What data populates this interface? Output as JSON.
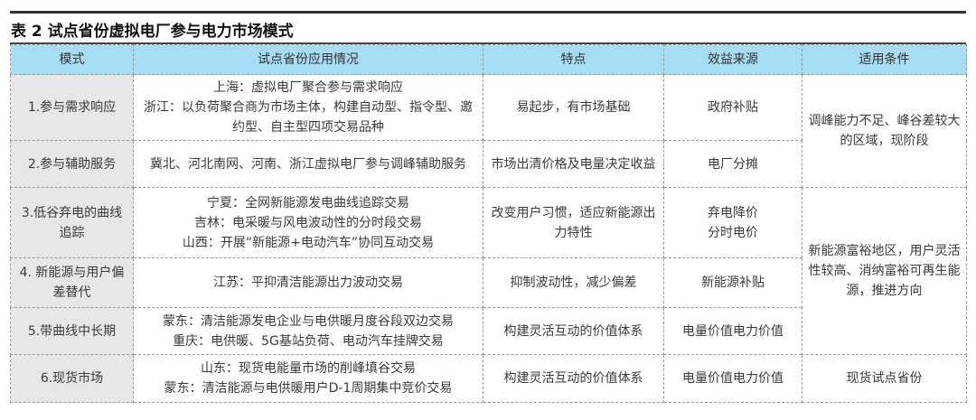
{
  "title": "表 2 试点省份虚拟电厂参与电力市场模式",
  "headers": [
    "模式",
    "试点省份应用情况",
    "特点",
    "效益来源",
    "适用条件"
  ],
  "rows": [
    {
      "mode": "1.参与需求响应",
      "cases": [
        "上海：虚拟电厂聚合参与需求响应",
        "浙江：以负荷聚合商为市场主体，构建自动型、指令型、邀约型、自主型四项交易品种"
      ],
      "feature": "易起步，有市场基础",
      "benefit": "政府补贴"
    },
    {
      "mode": "2.参与辅助服务",
      "cases": [
        "冀北、河北南网、河南、浙江虚拟电厂参与调峰辅助服务"
      ],
      "feature": "市场出清价格及电量决定收益",
      "benefit": "电厂分摊"
    },
    {
      "mode": "3.低谷弃电的曲线追踪",
      "cases": [
        "宁夏：全网新能源发电曲线追踪交易",
        "吉林：电采暖与风电波动性的分时段交易",
        "山西：开展“新能源+电动汽车”协同互动交易"
      ],
      "feature": "改变用户习惯，适应新能源出力特性",
      "benefit": "弃电降价\n分时电价"
    },
    {
      "mode": "4. 新能源与用户偏差替代",
      "cases": [
        "江苏：平抑清洁能源出力波动交易"
      ],
      "feature": "抑制波动性，减少偏差",
      "benefit": "新能源补贴"
    },
    {
      "mode": "5.带曲线中长期",
      "cases": [
        "蒙东：清洁能源发电企业与电供暖月度谷段双边交易",
        "重庆：电供暖、5G基站负荷、电动汽车挂牌交易"
      ],
      "feature": "构建灵活互动的价值体系",
      "benefit": "电量价值电力价值"
    },
    {
      "mode": "6.现货市场",
      "cases": [
        "山东：现货电能量市场的削峰填谷交易",
        "蒙东：清洁能源与电供暖用户D-1周期集中竞价交易"
      ],
      "feature": "构建灵活互动的价值体系",
      "benefit": "电量价值电力价值"
    }
  ],
  "conditions": [
    "调峰能力不足、峰谷差较大的区域，现阶段",
    "新能源富裕地区，用户灵活性较高、消纳富裕可再生能源，推进方向",
    "现货试点省份"
  ]
}
